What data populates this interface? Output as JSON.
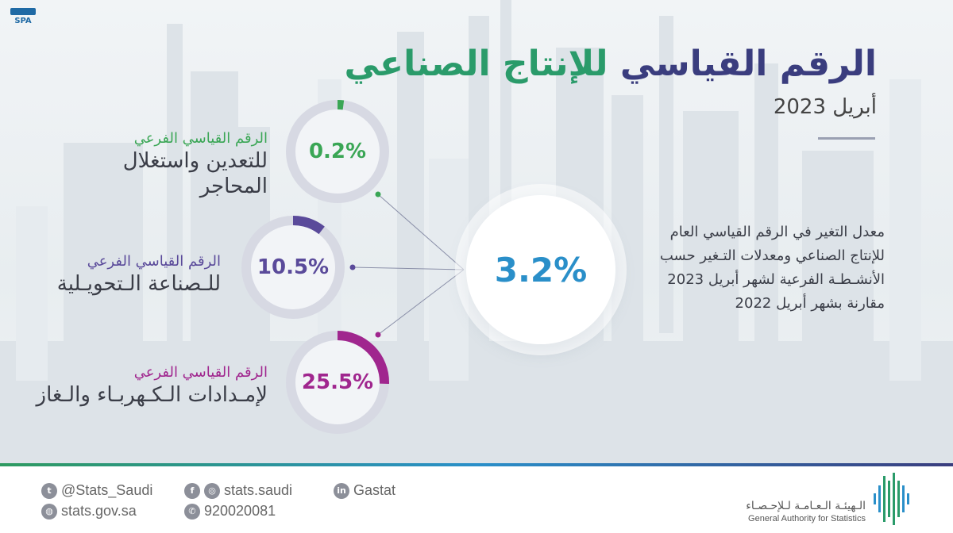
{
  "header": {
    "logo_text": "SPA",
    "title_part1": "الرقم القياسي",
    "title_part2": "للإنتاج الصناعي",
    "subtitle": "أبريل 2023"
  },
  "headline": {
    "value": "3.2%",
    "color": "#2a8fc9",
    "description": "معدل التغير في الرقم القياسي العام للإنتاج الصناعي ومعدلات التـغير حسب الأنشـطـة الفرعية لشهر أبريل 2023 مقارنة بشهر أبريل 2022"
  },
  "subindices": [
    {
      "value": "0.2%",
      "fraction": 0.002,
      "color": "#3aa655",
      "label_line1": "الرقم القياسي الفرعي",
      "label_line2": "للتعدين واستغلال",
      "label_line3": "المحاجر"
    },
    {
      "value": "10.5%",
      "fraction": 0.105,
      "color": "#5a4a9a",
      "label_line1": "الرقم القياسي الفرعي",
      "label_line2": "للـصناعة الـتحويـلية",
      "label_line3": ""
    },
    {
      "value": "25.5%",
      "fraction": 0.255,
      "color": "#a0268e",
      "label_line1": "الرقم القياسي الفرعي",
      "label_line2": "لإمـدادات الـكـهربـاء والـغاز",
      "label_line3": ""
    }
  ],
  "footer": {
    "twitter": "@Stats_Saudi",
    "website": "stats.gov.sa",
    "social": "stats.saudi",
    "phone": "920020081",
    "linkedin": "Gastat",
    "org_ar": "الـهيئـة الـعـامـة لـلإحـصـاء",
    "org_en": "General Authority for Statistics"
  }
}
